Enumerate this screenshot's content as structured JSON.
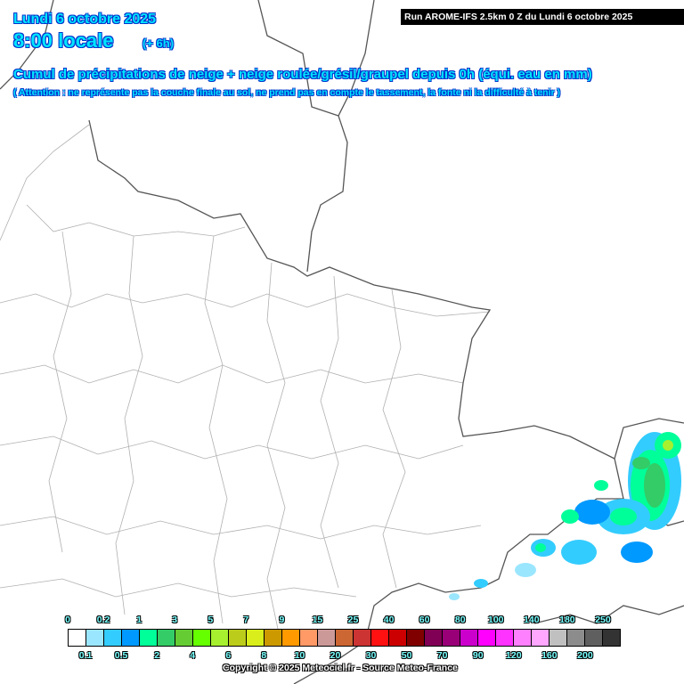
{
  "header": {
    "date": "Lundi 6 octobre 2025",
    "local_time": "8:00 locale",
    "lead_time": "(+ 6h)",
    "title": "Cumul de précipitations de neige + neige roulée/grésil/graupel depuis 0h (équi. eau en mm)",
    "note": "( Attention : ne représente pas la couche finale au sol, ne prend pas en compte le tassement, la fonte ni la difficulté à tenir )",
    "run": "Run AROME-IFS 2.5km 0 Z du Lundi 6 octobre 2025"
  },
  "legend": {
    "colors": [
      "#ffffff",
      "#9be6ff",
      "#33ccff",
      "#0099ff",
      "#00ff99",
      "#33cc66",
      "#66cc33",
      "#66ff00",
      "#a6f02f",
      "#bccc1a",
      "#d9ee1a",
      "#cc9900",
      "#ff9900",
      "#ff9966",
      "#cc9999",
      "#cc6633",
      "#cc3333",
      "#ff1111",
      "#cc0000",
      "#800000",
      "#800055",
      "#990077",
      "#cc00cc",
      "#ff00ff",
      "#ff33ff",
      "#ff80ff",
      "#ffa6ff",
      "#c0c0c0",
      "#8c8c8c",
      "#5f5f5f",
      "#333333"
    ],
    "top_labels": [
      "0",
      "0.2",
      "1",
      "3",
      "5",
      "7",
      "9",
      "15",
      "25",
      "40",
      "60",
      "80",
      "100",
      "140",
      "180",
      "250"
    ],
    "bottom_labels": [
      "0.1",
      "0.5",
      "2",
      "4",
      "6",
      "8",
      "10",
      "20",
      "30",
      "50",
      "70",
      "90",
      "120",
      "160",
      "200"
    ],
    "unit": "mm"
  },
  "copyright": "Copyright © 2025 Meteociel.fr - Source Meteo-France"
}
